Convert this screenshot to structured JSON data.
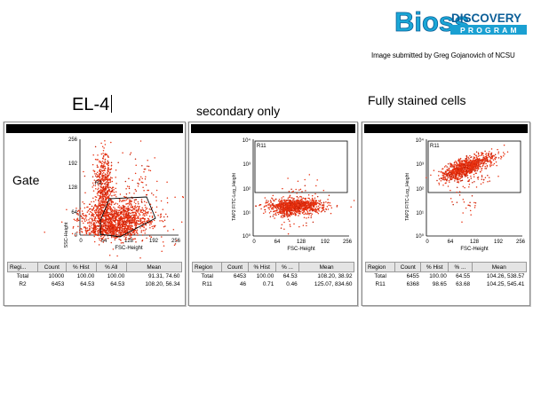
{
  "logo": {
    "brand": "Bioss",
    "tag_top": "DISCOVERY",
    "tag_bottom": "PROGRAM",
    "colors": {
      "blue": "#1aa7d6",
      "dark_blue": "#0c5f98",
      "bar": "#1aa0d2"
    }
  },
  "credit": "Image submitted by Greg Gojanovich of NCSU",
  "headings": {
    "el4": "EL-4",
    "secondary": "secondary only",
    "fully": "Fully stained cells"
  },
  "panels": [
    {
      "gate_label": "Gate",
      "plot": {
        "ylabel": "SSC-Height",
        "xlabel": "FSC-Height",
        "yticks": [
          "256",
          "192",
          "128",
          "64",
          "0"
        ],
        "xticks": [
          "0",
          "64",
          "128",
          "192",
          "256"
        ],
        "region_label": "R2"
      },
      "stats": {
        "columns": [
          "Regi...",
          "Count",
          "% Hist",
          "% All",
          "Mean"
        ],
        "rows": [
          [
            "Total",
            "10000",
            "100.00",
            "100.00",
            "91.31, 74.60"
          ],
          [
            "R2",
            "6453",
            "64.53",
            "64.53",
            "108.20, 56.34"
          ]
        ]
      }
    },
    {
      "plot": {
        "ylabel": "TAP2 FITC-Log_Height",
        "xlabel": "FSC-Height",
        "yticks": [
          "10⁴",
          "10³",
          "10²",
          "10¹",
          "10⁰"
        ],
        "xticks": [
          "0",
          "64",
          "128",
          "192",
          "256"
        ],
        "region_label": "R11"
      },
      "stats": {
        "columns": [
          "Region",
          "Count",
          "% Hist",
          "% ...",
          "Mean"
        ],
        "rows": [
          [
            "Total",
            "6453",
            "100.00",
            "64.53",
            "108.20, 38.92"
          ],
          [
            "R11",
            "46",
            "0.71",
            "0.46",
            "125.07, 834.60"
          ]
        ]
      }
    },
    {
      "plot": {
        "ylabel": "TAP2 FITC-Log_Height",
        "xlabel": "FSC-Height",
        "yticks": [
          "10⁴",
          "10³",
          "10²",
          "10¹",
          "10⁰"
        ],
        "xticks": [
          "0",
          "64",
          "128",
          "192",
          "256"
        ],
        "region_label": "R11"
      },
      "stats": {
        "columns": [
          "Region",
          "Count",
          "% Hist",
          "% ...",
          "Mean"
        ],
        "rows": [
          [
            "Total",
            "6455",
            "100.00",
            "64.55",
            "104.26, 538.57"
          ],
          [
            "R11",
            "6368",
            "98.65",
            "63.68",
            "104.25, 545.41"
          ]
        ]
      }
    }
  ],
  "colors": {
    "dots": "#e8300f",
    "dots_dark": "#c42008"
  }
}
